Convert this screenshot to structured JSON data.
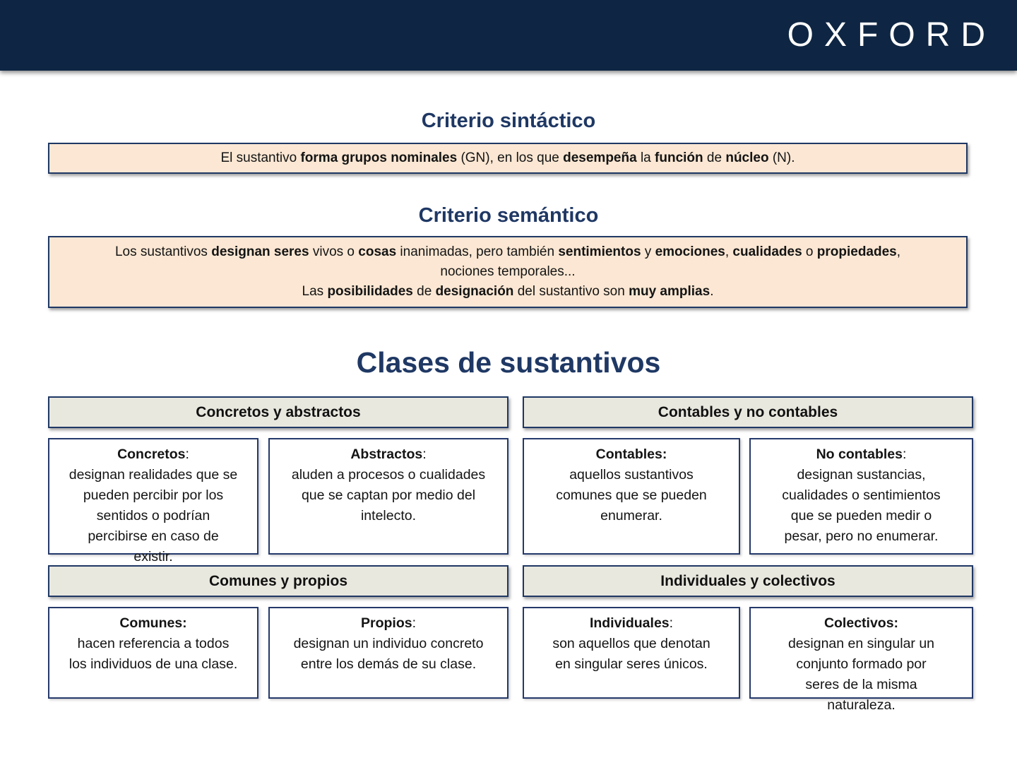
{
  "colors": {
    "header_navy": "#0e2643",
    "title_blue": "#1f3864",
    "definition_peach": "#fbe7d3",
    "group_header_beige": "#e9e8df",
    "border_navy": "#24396b"
  },
  "header": {
    "brand": "OXFORD"
  },
  "sections": [
    {
      "title": "Criterio sintáctico",
      "paragraphs": [
        [
          {
            "t": "El sustantivo ",
            "b": false
          },
          {
            "t": "forma grupos nominales",
            "b": true
          },
          {
            "t": " (GN), en los que ",
            "b": false
          },
          {
            "t": "desempeña",
            "b": true
          },
          {
            "t": " la ",
            "b": false
          },
          {
            "t": "función",
            "b": true
          },
          {
            "t": " de ",
            "b": false
          },
          {
            "t": "núcleo",
            "b": true
          },
          {
            "t": " (N).",
            "b": false
          }
        ]
      ]
    },
    {
      "title": "Criterio semántico",
      "paragraphs": [
        [
          {
            "t": "Los sustantivos ",
            "b": false
          },
          {
            "t": "designan seres",
            "b": true
          },
          {
            "t": " vivos o ",
            "b": false
          },
          {
            "t": "cosas",
            "b": true
          },
          {
            "t": " inanimadas, pero también ",
            "b": false
          },
          {
            "t": "sentimientos",
            "b": true
          },
          {
            "t": " y ",
            "b": false
          },
          {
            "t": "emociones",
            "b": true
          },
          {
            "t": ", ",
            "b": false
          },
          {
            "t": "cualidades",
            "b": true
          },
          {
            "t": " o ",
            "b": false
          },
          {
            "t": "propiedades",
            "b": true
          },
          {
            "t": ",\nnociones temporales...",
            "b": false
          }
        ],
        [
          {
            "t": "Las ",
            "b": false
          },
          {
            "t": "posibilidades",
            "b": true
          },
          {
            "t": " de ",
            "b": false
          },
          {
            "t": "designación",
            "b": true
          },
          {
            "t": " del sustantivo son ",
            "b": false
          },
          {
            "t": "muy amplias",
            "b": true
          },
          {
            "t": ".",
            "b": false
          }
        ]
      ]
    }
  ],
  "classes": {
    "title": "Clases de sustantivos",
    "groups": [
      {
        "header": "Concretos y abstractos",
        "cards": [
          {
            "title": [
              {
                "t": "Concretos",
                "b": true
              },
              {
                "t": ":",
                "b": false
              }
            ],
            "body": "designan realidades que se\npueden percibir por los\nsentidos o podrían\npercibirse en caso de\nexistir."
          },
          {
            "title": [
              {
                "t": "Abstractos",
                "b": true
              },
              {
                "t": ":",
                "b": false
              }
            ],
            "body": "aluden a procesos o cualidades\nque se captan por medio del\nintelecto."
          }
        ]
      },
      {
        "header": "Contables y no contables",
        "cards": [
          {
            "title": [
              {
                "t": "Contables:",
                "b": true
              }
            ],
            "body": "aquellos sustantivos\ncomunes que se pueden\nenumerar."
          },
          {
            "title": [
              {
                "t": "No contables",
                "b": true
              },
              {
                "t": ":",
                "b": false
              }
            ],
            "body": "designan sustancias,\ncualidades o sentimientos\nque se pueden medir o\npesar, pero no enumerar."
          }
        ]
      },
      {
        "header": "Comunes y propios",
        "cards": [
          {
            "title": [
              {
                "t": "Comunes:",
                "b": true
              }
            ],
            "body": "hacen referencia a todos\nlos individuos de una clase."
          },
          {
            "title": [
              {
                "t": "Propios",
                "b": true
              },
              {
                "t": ":",
                "b": false
              }
            ],
            "body": "designan un individuo concreto\nentre los demás de su clase."
          }
        ]
      },
      {
        "header": "Individuales y colectivos",
        "cards": [
          {
            "title": [
              {
                "t": "Individuales",
                "b": true
              },
              {
                "t": ":",
                "b": false
              }
            ],
            "body": "son aquellos que denotan\nen singular seres únicos."
          },
          {
            "title": [
              {
                "t": "Colectivos:",
                "b": true
              }
            ],
            "body": "designan en singular un\nconjunto formado por\nseres de la misma\nnaturaleza."
          }
        ]
      }
    ]
  }
}
